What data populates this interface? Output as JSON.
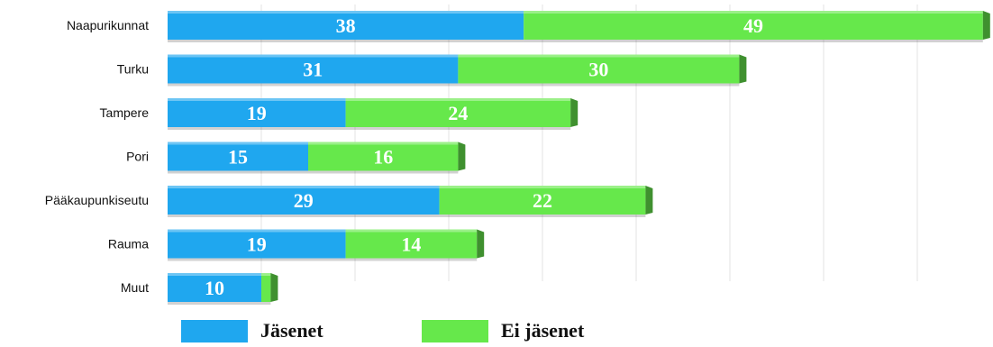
{
  "chart_data": {
    "type": "bar",
    "orientation": "horizontal",
    "stacked": true,
    "categories": [
      "Naapurikunnat",
      "Turku",
      "Tampere",
      "Pori",
      "Pääkaupunkiseutu",
      "Rauma",
      "Muut"
    ],
    "series": [
      {
        "name": "Jäsenet",
        "values": [
          38,
          31,
          19,
          15,
          29,
          19,
          10
        ],
        "color": "#1fa7ef"
      },
      {
        "name": "Ei jäsenet",
        "values": [
          49,
          30,
          24,
          16,
          22,
          14,
          1
        ],
        "color": "#66e84b"
      }
    ],
    "value_labels": [
      [
        "38",
        "31",
        "19",
        "15",
        "29",
        "19",
        "10"
      ],
      [
        "49",
        "30",
        "24",
        "16",
        "22",
        "14",
        ""
      ]
    ],
    "xlim": [
      0,
      87
    ],
    "grid": true,
    "legend_position": "bottom"
  },
  "legend": {
    "items": [
      {
        "label": "Jäsenet",
        "color": "#1fa7ef"
      },
      {
        "label": "Ei jäsenet",
        "color": "#66e84b"
      }
    ]
  }
}
